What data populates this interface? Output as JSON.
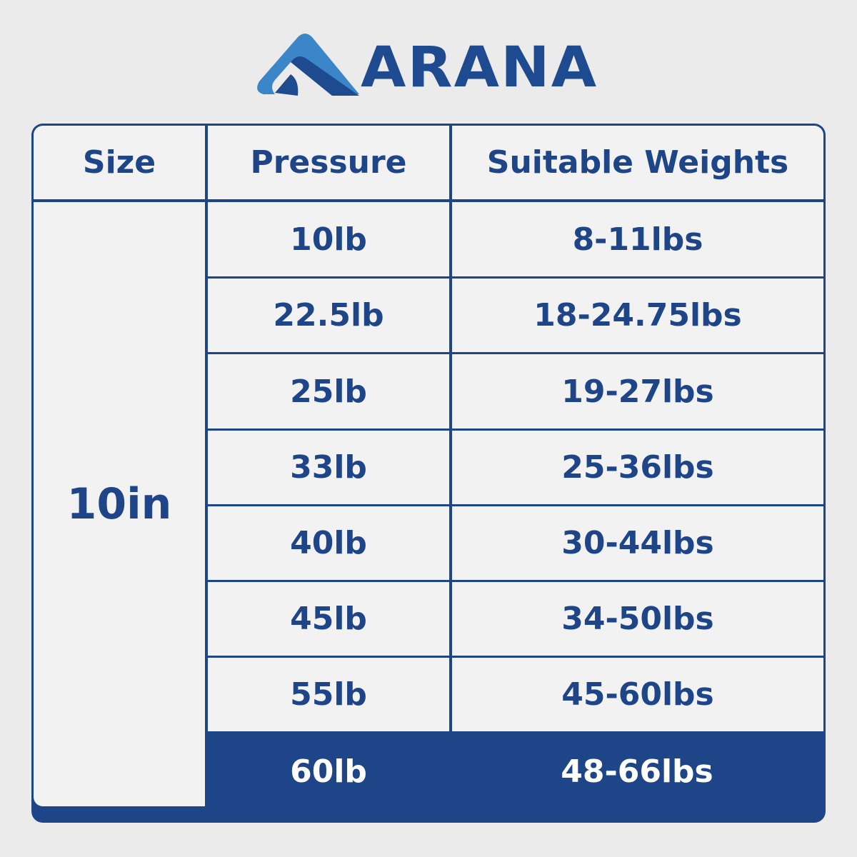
{
  "brand": {
    "name": "ARANA",
    "colors": {
      "light_blue": "#3a86c8",
      "dark_blue": "#1e4a90"
    }
  },
  "table": {
    "headers": [
      "Size",
      "Pressure",
      "Suitable Weights"
    ],
    "size": "10in",
    "rows": [
      {
        "pressure": "10lb",
        "weights": "8-11lbs"
      },
      {
        "pressure": "22.5lb",
        "weights": "18-24.75lbs"
      },
      {
        "pressure": "25lb",
        "weights": "19-27lbs"
      },
      {
        "pressure": "33lb",
        "weights": "25-36lbs"
      },
      {
        "pressure": "40lb",
        "weights": "30-44lbs"
      },
      {
        "pressure": "45lb",
        "weights": "34-50lbs"
      },
      {
        "pressure": "55lb",
        "weights": "45-60lbs"
      },
      {
        "pressure": "60lb",
        "weights": "48-66lbs"
      }
    ],
    "highlighted_row": 7,
    "accent_color": "#1e4588"
  }
}
